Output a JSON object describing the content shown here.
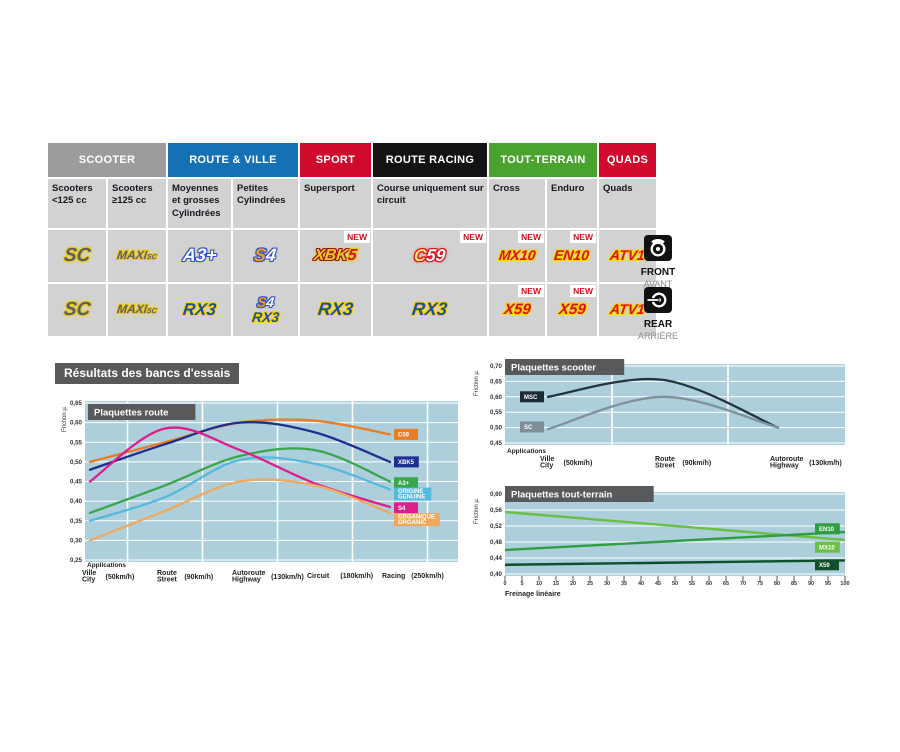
{
  "section_title": "Résultats des bancs d'essais",
  "markers": {
    "front": {
      "label": "FRONT",
      "sub": "AVANT"
    },
    "rear": {
      "label": "REAR",
      "sub": "ARRIÈRE"
    }
  },
  "table": {
    "new_label": "NEW",
    "groups": [
      {
        "label": "SCOOTER",
        "color": "#9c9c9c",
        "span": 2
      },
      {
        "label": "ROUTE & VILLE",
        "color": "#1570b4",
        "span": 2
      },
      {
        "label": "SPORT",
        "color": "#cf0a2c",
        "span": 1
      },
      {
        "label": "ROUTE RACING",
        "color": "#131313",
        "span": 1
      },
      {
        "label": "TOUT-TERRAIN",
        "color": "#4ba32f",
        "span": 2
      },
      {
        "label": "QUADS",
        "color": "#cf0a2c",
        "span": 1
      }
    ],
    "columns": [
      "Scooters <125 cc",
      "Scooters ≥125 cc",
      "Moyennes et grosses Cylindrées",
      "Petites Cylindrées",
      "Supersport",
      "Course uniquement sur circuit",
      "Cross",
      "Enduro",
      "Quads"
    ],
    "front": {
      "cells": [
        {
          "parts": [
            {
              "size": 19,
              "outline": "#e9c81f",
              "glow": "#f5e13a",
              "spans": [
                {
                  "t": "SC",
                  "fill": "#5a5f66"
                }
              ]
            }
          ]
        },
        {
          "parts": [
            {
              "size": 12,
              "outline": "#e9c81f",
              "glow": "#f5e13a",
              "spans": [
                {
                  "t": "MAXI",
                  "fill": "#5a5f66"
                },
                {
                  "t": "SC",
                  "fill": "#5a5f66",
                  "small": true
                }
              ]
            }
          ]
        },
        {
          "parts": [
            {
              "size": 18,
              "outline": "#2a4fd0",
              "glow": "#e9c81f",
              "spans": [
                {
                  "t": "A3+",
                  "fill": "#ffffff"
                }
              ]
            }
          ]
        },
        {
          "parts": [
            {
              "size": 18,
              "outline": "#3350c0",
              "glow": "#b9c9ee",
              "spans": [
                {
                  "t": "S",
                  "fill": "#f09e1c"
                },
                {
                  "t": "4",
                  "fill": "#ffffff"
                }
              ]
            }
          ]
        },
        {
          "new": true,
          "parts": [
            {
              "size": 16,
              "outline": "#9c1616",
              "glow": "#e9c81f",
              "spans": [
                {
                  "t": "XBK",
                  "fill": "#eec71f"
                },
                {
                  "t": "5",
                  "fill": "#d51322",
                  "outline": "#e9c81f"
                }
              ]
            }
          ]
        },
        {
          "new": true,
          "parts": [
            {
              "size": 17,
              "outline": "#d3101c",
              "glow": "#ff5a5a",
              "spans": [
                {
                  "t": "C",
                  "fill": "#ffe26a"
                },
                {
                  "t": "59",
                  "fill": "#ffffff"
                }
              ]
            }
          ]
        },
        {
          "new": true,
          "parts": [
            {
              "size": 14,
              "outline": "#ffd400",
              "spans": [
                {
                  "t": "MX10",
                  "fill": "#d51322"
                }
              ]
            }
          ]
        },
        {
          "new": true,
          "parts": [
            {
              "size": 14,
              "outline": "#ffd400",
              "spans": [
                {
                  "t": "EN10",
                  "fill": "#d51322"
                }
              ]
            }
          ]
        },
        {
          "parts": [
            {
              "size": 14,
              "outline": "#ffd400",
              "spans": [
                {
                  "t": "ATV1",
                  "fill": "#d51322"
                }
              ]
            }
          ]
        }
      ]
    },
    "rear": {
      "cells": [
        {
          "parts": [
            {
              "size": 19,
              "outline": "#e9c81f",
              "glow": "#f5e13a",
              "spans": [
                {
                  "t": "SC",
                  "fill": "#5a5f66"
                }
              ]
            }
          ]
        },
        {
          "parts": [
            {
              "size": 12,
              "outline": "#e9c81f",
              "glow": "#f5e13a",
              "spans": [
                {
                  "t": "MAXI",
                  "fill": "#5a5f66"
                },
                {
                  "t": "SC",
                  "fill": "#5a5f66",
                  "small": true
                }
              ]
            }
          ]
        },
        {
          "parts": [
            {
              "size": 17,
              "outline": "#ffd400",
              "spans": [
                {
                  "t": "RX3",
                  "fill": "#1d4fa0"
                }
              ]
            }
          ]
        },
        {
          "parts": [
            {
              "size": 14,
              "outline": "#3350c0",
              "glow": "#b9c9ee",
              "spans": [
                {
                  "t": "S",
                  "fill": "#f09e1c"
                },
                {
                  "t": "4",
                  "fill": "#ffffff"
                }
              ]
            },
            {
              "size": 14,
              "outline": "#ffd400",
              "spans": [
                {
                  "t": "RX3",
                  "fill": "#1d4fa0"
                }
              ]
            }
          ]
        },
        {
          "parts": [
            {
              "size": 18,
              "outline": "#ffd400",
              "spans": [
                {
                  "t": "RX3",
                  "fill": "#1d4fa0"
                }
              ]
            }
          ]
        },
        {
          "parts": [
            {
              "size": 18,
              "outline": "#ffd400",
              "spans": [
                {
                  "t": "RX3",
                  "fill": "#1d4fa0"
                }
              ]
            }
          ]
        },
        {
          "new": true,
          "parts": [
            {
              "size": 15,
              "outline": "#ffd400",
              "spans": [
                {
                  "t": "X59",
                  "fill": "#d51322"
                }
              ]
            }
          ]
        },
        {
          "new": true,
          "parts": [
            {
              "size": 15,
              "outline": "#ffd400",
              "spans": [
                {
                  "t": "X59",
                  "fill": "#d51322"
                }
              ]
            }
          ]
        },
        {
          "parts": [
            {
              "size": 14,
              "outline": "#ffd400",
              "spans": [
                {
                  "t": "ATV1",
                  "fill": "#d51322"
                }
              ]
            }
          ]
        }
      ]
    }
  },
  "chart_data": [
    {
      "id": "route",
      "type": "line",
      "title": "Plaquettes route",
      "ylabel": "Friction µ",
      "xlabel": "Applications",
      "ylim": [
        0.25,
        0.65
      ],
      "ytick_step": 0.05,
      "grid": true,
      "legend_position": "right-inside",
      "bg": "#accfdb",
      "categories": [
        {
          "l1": "Ville",
          "l2": "City",
          "speed": "(50km/h)"
        },
        {
          "l1": "Route",
          "l2": "Street",
          "speed": "(90km/h)"
        },
        {
          "l1": "Autoroute",
          "l2": "Highway",
          "speed": "(130km/h)"
        },
        {
          "l1": "Circuit",
          "speed": "(180km/h)"
        },
        {
          "l1": "Racing",
          "speed": "(250km/h)"
        }
      ],
      "series": [
        {
          "name": [
            "C59"
          ],
          "color": "#ea7c26",
          "values": [
            0.5,
            0.55,
            0.6,
            0.605,
            0.57
          ]
        },
        {
          "name": [
            "XBK5"
          ],
          "color": "#1f2f8f",
          "values": [
            0.48,
            0.545,
            0.6,
            0.575,
            0.5
          ]
        },
        {
          "name": [
            "A3+"
          ],
          "color": "#3aa64c",
          "values": [
            0.37,
            0.44,
            0.515,
            0.53,
            0.45
          ]
        },
        {
          "name": [
            "ORIGINE",
            "GENUINE"
          ],
          "color": "#55b9dd",
          "values": [
            0.35,
            0.41,
            0.505,
            0.495,
            0.43
          ]
        },
        {
          "name": [
            "S4"
          ],
          "color": "#dd1e8c",
          "values": [
            0.45,
            0.585,
            0.53,
            0.445,
            0.385
          ]
        },
        {
          "name": [
            "ORGANIQUE",
            "ORGANIC"
          ],
          "color": "#f0a85e",
          "values": [
            0.3,
            0.375,
            0.45,
            0.44,
            0.37
          ]
        }
      ]
    },
    {
      "id": "scooter",
      "type": "line",
      "title": "Plaquettes scooter",
      "ylabel": "Friction µ",
      "xlabel": "Applications",
      "ylim": [
        0.45,
        0.7
      ],
      "ytick_step": 0.05,
      "grid": true,
      "legend_position": "left-inside",
      "bg": "#accfdb",
      "categories": [
        {
          "l1": "Ville",
          "l2": "City",
          "speed": "(50km/h)"
        },
        {
          "l1": "Route",
          "l2": "Street",
          "speed": "(90km/h)"
        },
        {
          "l1": "Autoroute",
          "l2": "Highway",
          "speed": "(130km/h)"
        }
      ],
      "series": [
        {
          "name": [
            "MSC"
          ],
          "color": "#223540",
          "chip_color": "#1b2b38",
          "values": [
            0.6,
            0.655,
            0.5
          ]
        },
        {
          "name": [
            "SC"
          ],
          "color": "#7f919c",
          "chip_color": "#7d8e99",
          "values": [
            0.495,
            0.6,
            0.5
          ]
        }
      ]
    },
    {
      "id": "tt",
      "type": "line",
      "title": "Plaquettes tout-terrain",
      "ylabel": "Friction µ",
      "xlabel": "Freinage linéaire",
      "ylim": [
        0.4,
        0.6
      ],
      "ytick_step": 0.04,
      "xlim": [
        0,
        100
      ],
      "xtick_step": 5,
      "grid": true,
      "legend_position": "right-inside",
      "bg": "#accfdb",
      "series": [
        {
          "name": [
            "MX10"
          ],
          "color": "#6abf47",
          "x": [
            0,
            100
          ],
          "values": [
            0.555,
            0.485
          ]
        },
        {
          "name": [
            "EN10"
          ],
          "color": "#2f9e41",
          "x": [
            0,
            100
          ],
          "values": [
            0.46,
            0.505
          ]
        },
        {
          "name": [
            "X59"
          ],
          "color": "#0d4f28",
          "chip_color": "#124f2a",
          "x": [
            0,
            100
          ],
          "values": [
            0.423,
            0.434
          ]
        }
      ]
    }
  ]
}
